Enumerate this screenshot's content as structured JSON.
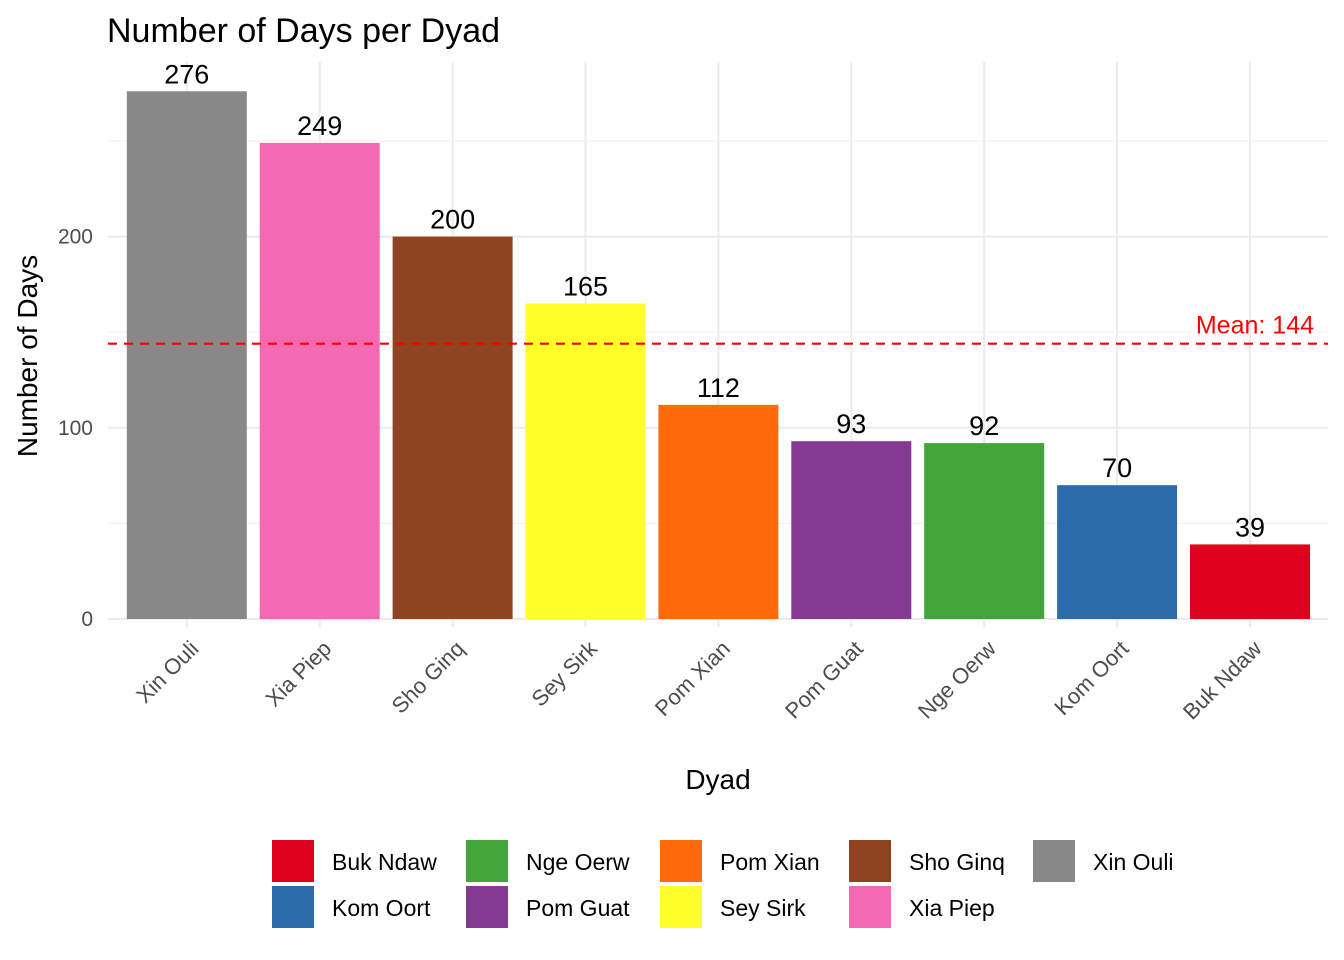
{
  "chart_data": {
    "type": "bar",
    "title": "Number of Days per Dyad",
    "xlabel": "Dyad",
    "ylabel": "Number of Days",
    "ylim": [
      0,
      280
    ],
    "yticks": [
      0,
      100,
      200
    ],
    "grid": true,
    "legend_position": "bottom",
    "categories": [
      "Xin Ouli",
      "Xia Piep",
      "Sho Ginq",
      "Sey Sirk",
      "Pom Xian",
      "Pom Guat",
      "Nge Oerw",
      "Kom Oort",
      "Buk Ndaw"
    ],
    "values": [
      276,
      249,
      200,
      165,
      112,
      93,
      92,
      70,
      39
    ],
    "colors": [
      "#888888",
      "#F36AB3",
      "#8F4320",
      "#FFFF2A",
      "#FF6A0D",
      "#853A91",
      "#41A53A",
      "#2C6BAA",
      "#DE001C"
    ],
    "mean": {
      "value": 144,
      "label": "Mean: 144",
      "color": "#FF0000"
    },
    "legend": [
      {
        "name": "Buk Ndaw",
        "color": "#DE001C"
      },
      {
        "name": "Kom Oort",
        "color": "#2C6BAA"
      },
      {
        "name": "Nge Oerw",
        "color": "#41A53A"
      },
      {
        "name": "Pom Guat",
        "color": "#853A91"
      },
      {
        "name": "Pom Xian",
        "color": "#FF6A0D"
      },
      {
        "name": "Sey Sirk",
        "color": "#FFFF2A"
      },
      {
        "name": "Sho Ginq",
        "color": "#8F4320"
      },
      {
        "name": "Xia Piep",
        "color": "#F36AB3"
      },
      {
        "name": "Xin Ouli",
        "color": "#888888"
      }
    ]
  }
}
